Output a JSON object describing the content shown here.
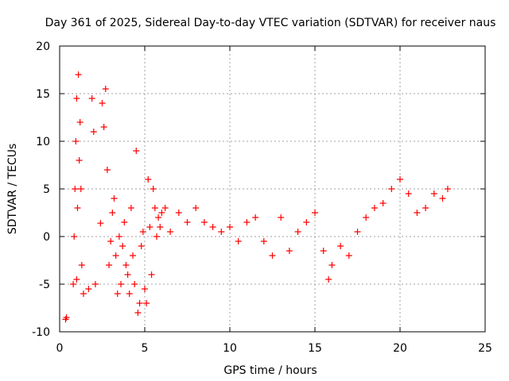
{
  "chart_data": {
    "type": "scatter",
    "title": "Day 361 of 2025, Sidereal Day-to-day VTEC variation (SDTVAR) for receiver naus",
    "xlabel": "GPS time / hours",
    "ylabel": "SDTVAR / TECUs",
    "xlim": [
      0,
      25
    ],
    "ylim": [
      -10,
      20
    ],
    "xticks": [
      0,
      5,
      10,
      15,
      20,
      25
    ],
    "yticks": [
      -10,
      -5,
      0,
      5,
      10,
      15,
      20
    ],
    "grid": true,
    "marker": "+",
    "color": "#ff0000",
    "series": [
      {
        "name": "SDTVAR",
        "x": [
          0.35,
          0.4,
          0.8,
          0.85,
          0.9,
          0.95,
          1.0,
          1.0,
          1.05,
          1.1,
          1.15,
          1.2,
          1.25,
          1.3,
          1.4,
          1.7,
          1.9,
          2.0,
          2.1,
          2.4,
          2.5,
          2.6,
          2.7,
          2.8,
          2.9,
          3.0,
          3.1,
          3.2,
          3.3,
          3.4,
          3.5,
          3.6,
          3.7,
          3.8,
          3.9,
          4.0,
          4.1,
          4.2,
          4.3,
          4.4,
          4.5,
          4.6,
          4.7,
          4.8,
          4.9,
          5.0,
          5.1,
          5.2,
          5.3,
          5.4,
          5.5,
          5.6,
          5.7,
          5.8,
          5.9,
          6.0,
          6.2,
          6.5,
          7.0,
          7.5,
          8.0,
          8.5,
          9.0,
          9.5,
          10.0,
          10.5,
          11.0,
          11.5,
          12.0,
          12.5,
          13.0,
          13.5,
          14.0,
          14.5,
          15.0,
          15.5,
          15.8,
          16.0,
          16.5,
          17.0,
          17.5,
          18.0,
          18.5,
          19.0,
          19.5,
          20.0,
          20.5,
          21.0,
          21.5,
          22.0,
          22.5,
          22.8
        ],
        "y": [
          -8.7,
          -8.5,
          -5.0,
          0.0,
          5.0,
          10.0,
          14.5,
          -4.5,
          3.0,
          17.0,
          8.0,
          12.0,
          5.0,
          -3.0,
          -6.0,
          -5.5,
          14.5,
          11.0,
          -5.0,
          1.4,
          14.0,
          11.5,
          15.5,
          7.0,
          -3.0,
          -0.5,
          2.5,
          4.0,
          -2.0,
          -6.0,
          0.0,
          -5.0,
          -1.0,
          1.5,
          -3.0,
          -4.0,
          -6.0,
          3.0,
          -2.0,
          -5.0,
          9.0,
          -8.0,
          -7.0,
          -1.0,
          0.5,
          -5.5,
          -7.0,
          6.0,
          1.0,
          -4.0,
          5.0,
          3.0,
          0.0,
          2.0,
          1.0,
          2.5,
          3.0,
          0.5,
          2.5,
          1.5,
          3.0,
          1.5,
          1.0,
          0.5,
          1.0,
          -0.5,
          1.5,
          2.0,
          -0.5,
          -2.0,
          2.0,
          -1.5,
          0.5,
          1.5,
          2.5,
          -1.5,
          -4.5,
          -3.0,
          -1.0,
          -2.0,
          0.5,
          2.0,
          3.0,
          3.5,
          5.0,
          6.0,
          4.5,
          2.5,
          3.0,
          4.5,
          4.0,
          5.0
        ]
      }
    ]
  }
}
